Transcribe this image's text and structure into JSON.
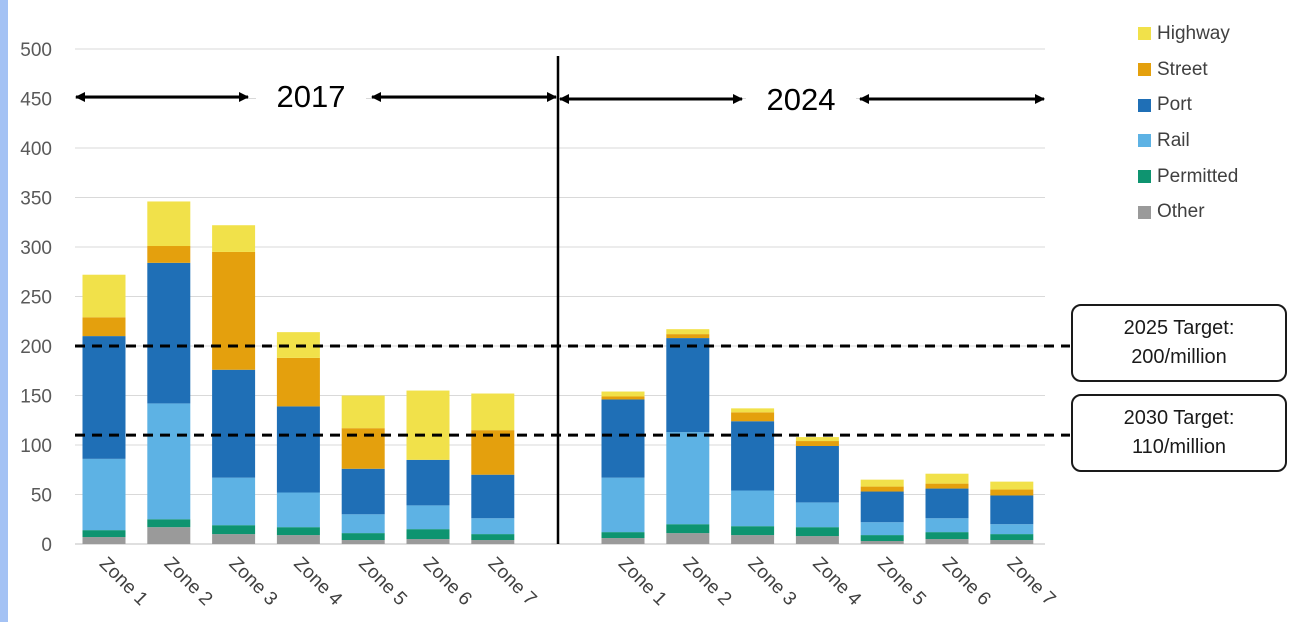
{
  "colors": {
    "left_strip": "#a4c2f4",
    "Highway": "#f1e14a",
    "Street": "#e4a00d",
    "Port": "#1f6fb6",
    "Rail": "#5db2e4",
    "Permitted": "#0e9470",
    "Other": "#9a9a9a"
  },
  "chart_data": {
    "type": "bar",
    "stacked": true,
    "ylim": [
      0,
      500
    ],
    "yticks": [
      0,
      50,
      100,
      150,
      200,
      250,
      300,
      350,
      400,
      450,
      500
    ],
    "grid": true,
    "legend_position": "top-right",
    "groups": [
      "2017",
      "2024"
    ],
    "categories": [
      "Zone 1",
      "Zone 2",
      "Zone 3",
      "Zone 4",
      "Zone 5",
      "Zone 6",
      "Zone 7"
    ],
    "series_order": [
      "Other",
      "Permitted",
      "Rail",
      "Port",
      "Street",
      "Highway"
    ],
    "legend_order": [
      "Highway",
      "Street",
      "Port",
      "Rail",
      "Permitted",
      "Other"
    ],
    "series_by_group": {
      "2017": {
        "Other": [
          7,
          17,
          10,
          9,
          4,
          5,
          4
        ],
        "Permitted": [
          7,
          8,
          9,
          8,
          7,
          10,
          6
        ],
        "Rail": [
          72,
          117,
          48,
          35,
          19,
          24,
          16
        ],
        "Port": [
          124,
          142,
          109,
          87,
          46,
          46,
          44
        ],
        "Street": [
          19,
          17,
          119,
          49,
          41,
          0,
          45
        ],
        "Highway": [
          43,
          45,
          27,
          26,
          33,
          70,
          37
        ]
      },
      "2024": {
        "Other": [
          6,
          11,
          9,
          8,
          3,
          5,
          4
        ],
        "Permitted": [
          6,
          9,
          9,
          9,
          6,
          7,
          6
        ],
        "Rail": [
          55,
          93,
          36,
          25,
          13,
          14,
          10
        ],
        "Port": [
          79,
          95,
          70,
          57,
          31,
          30,
          29
        ],
        "Street": [
          3,
          4,
          9,
          5,
          5,
          5,
          6
        ],
        "Highway": [
          5,
          5,
          4,
          4,
          7,
          10,
          8
        ]
      }
    },
    "period_labels": [
      "2017",
      "2024"
    ],
    "targets": [
      {
        "value": 200,
        "label_line1": "2025 Target:",
        "label_line2": "200/million"
      },
      {
        "value": 110,
        "label_line1": "2030 Target:",
        "label_line2": "110/million"
      }
    ]
  }
}
